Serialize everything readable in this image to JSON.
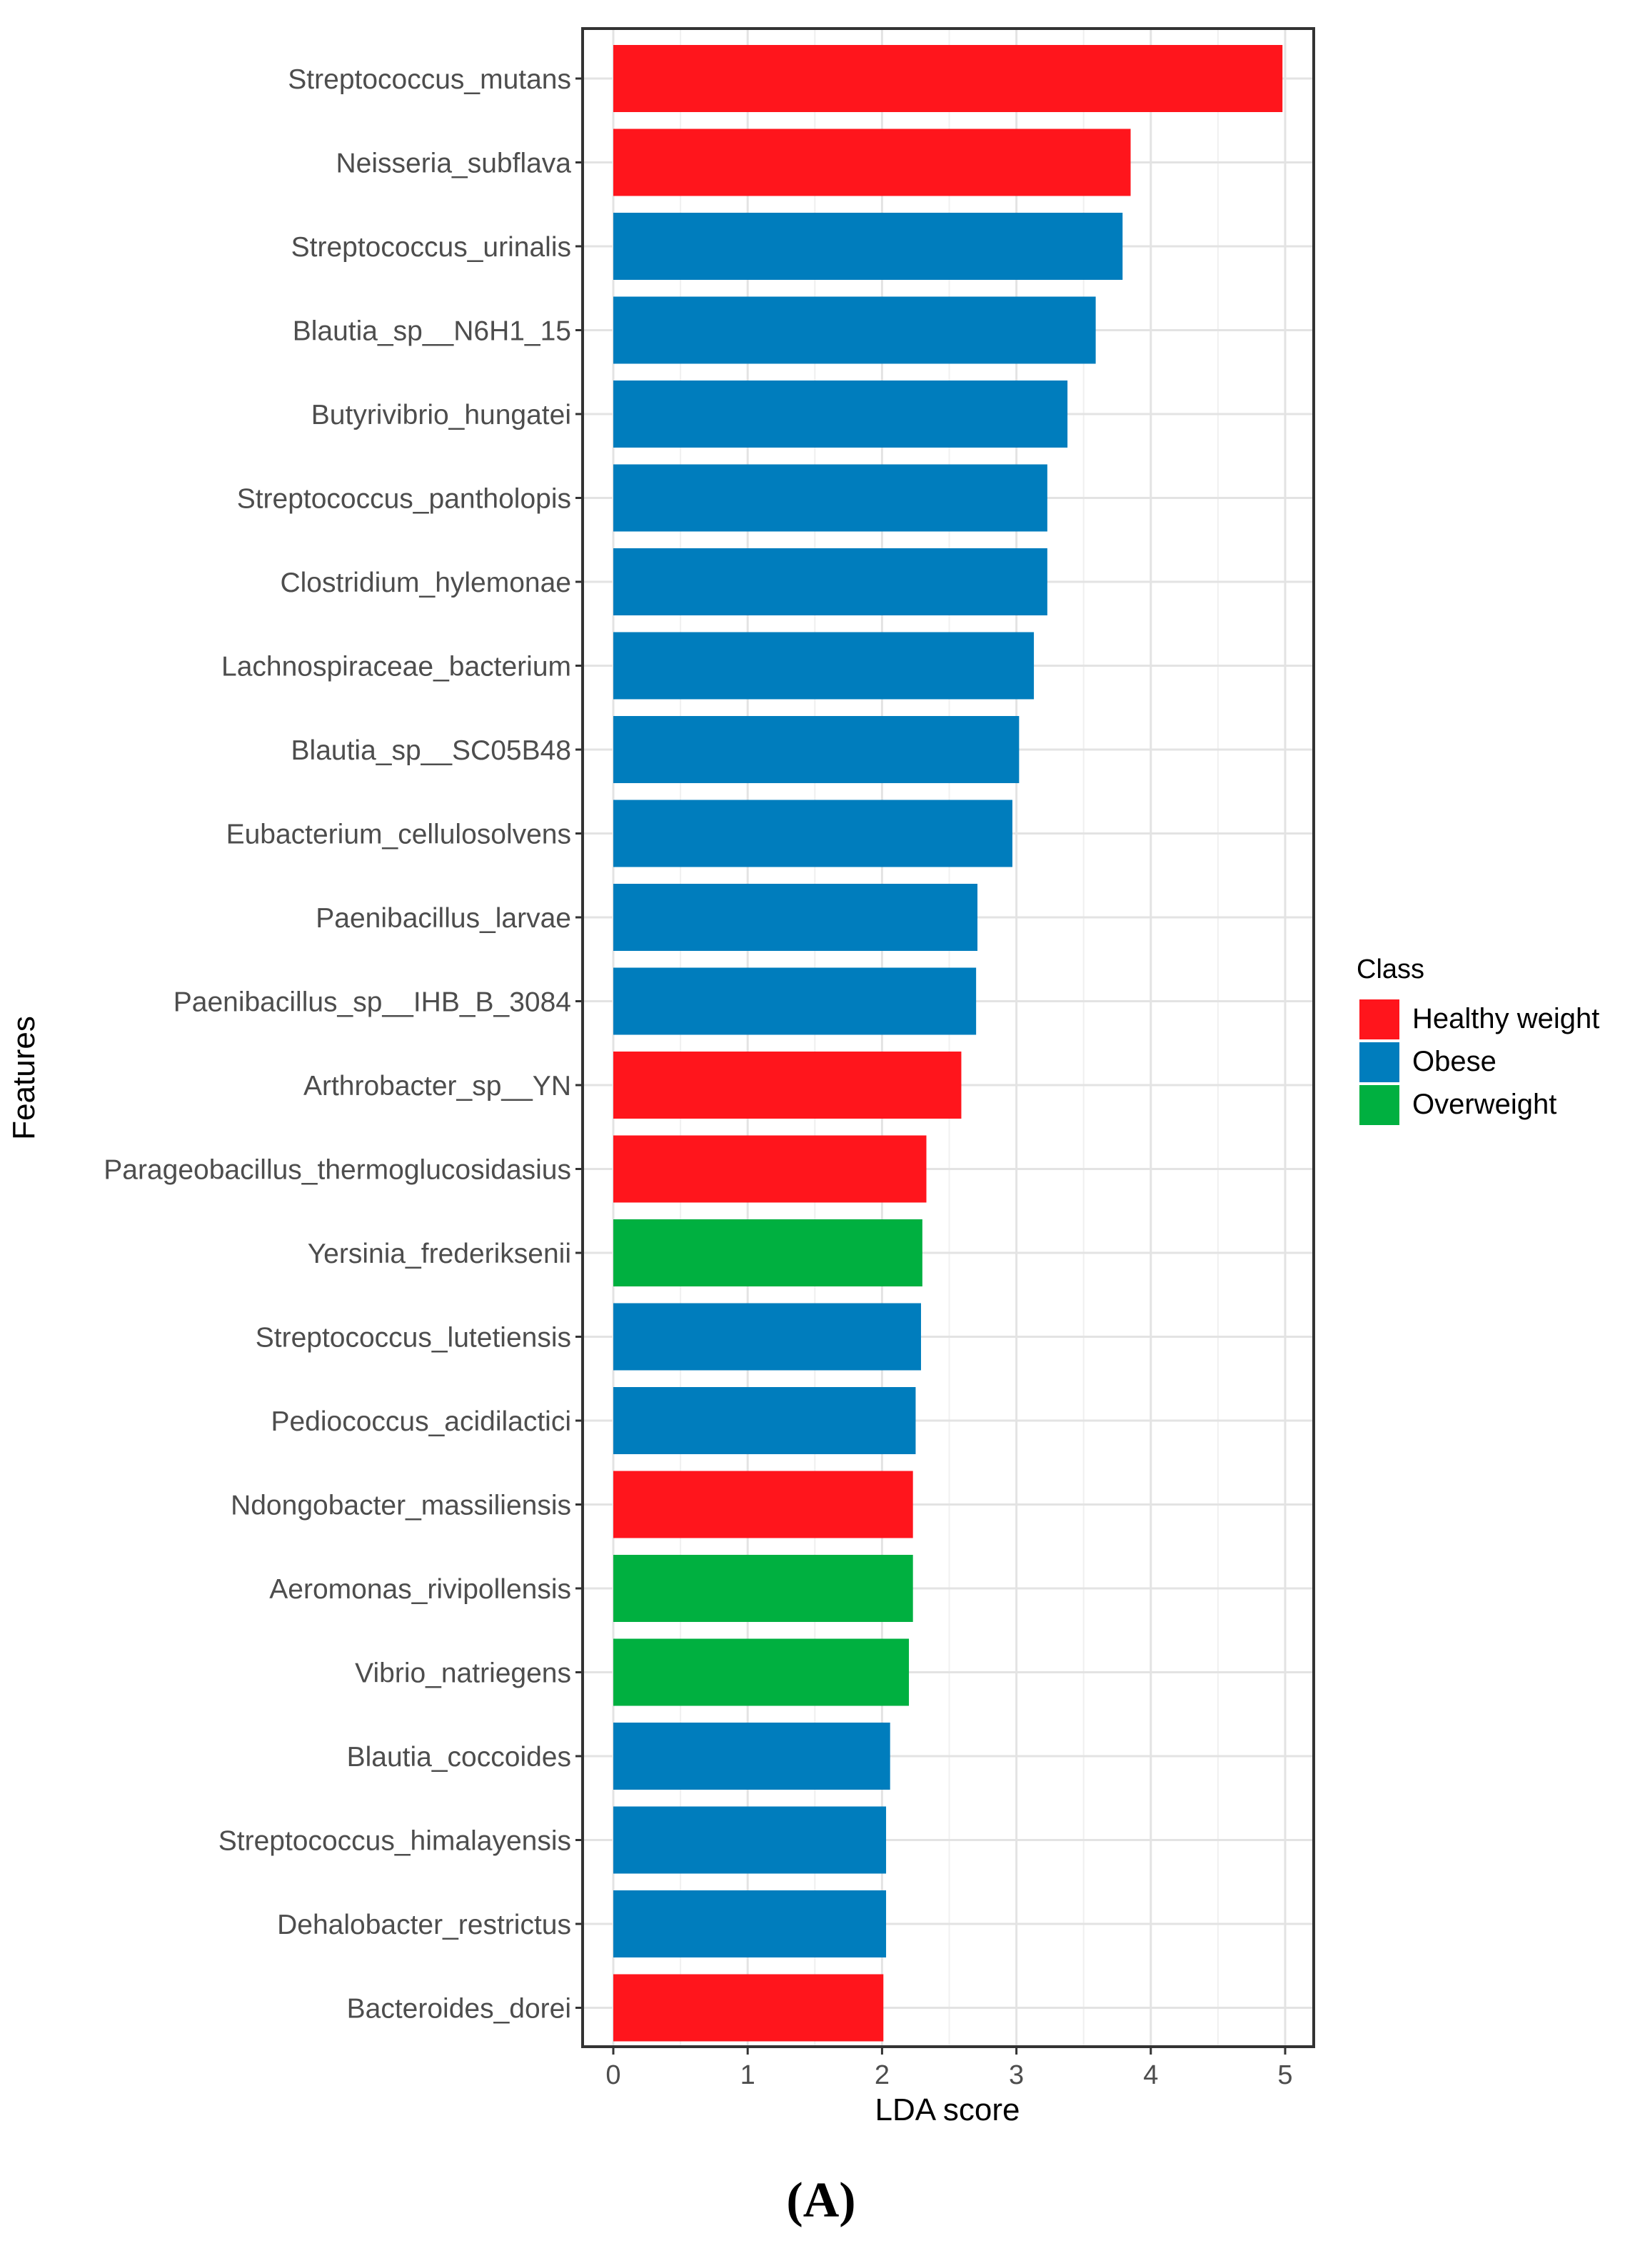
{
  "chart_data": {
    "type": "bar",
    "orientation": "horizontal",
    "title": "",
    "xlabel": "LDA score",
    "ylabel": "Features",
    "xlim": [
      0,
      5.2
    ],
    "xticks": [
      0,
      1,
      2,
      3,
      4,
      5
    ],
    "grid": true,
    "legend": {
      "title": "Class",
      "position": "right",
      "entries": [
        {
          "name": "Healthy weight",
          "color": "#FF151C"
        },
        {
          "name": "Obese",
          "color": "#007DBD"
        },
        {
          "name": "Overweight",
          "color": "#00B040"
        }
      ]
    },
    "panel_label": "(A)",
    "categories": [
      "Streptococcus_mutans",
      "Neisseria_subflava",
      "Streptococcus_urinalis",
      "Blautia_sp__N6H1_15",
      "Butyrivibrio_hungatei",
      "Streptococcus_pantholopis",
      "Clostridium_hylemonae",
      "Lachnospiraceae_bacterium",
      "Blautia_sp__SC05B48",
      "Eubacterium_cellulosolvens",
      "Paenibacillus_larvae",
      "Paenibacillus_sp__IHB_B_3084",
      "Arthrobacter_sp__YN",
      "Parageobacillus_thermoglucosidasius",
      "Yersinia_frederiksenii",
      "Streptococcus_lutetiensis",
      "Pediococcus_acidilactici",
      "Ndongobacter_massiliensis",
      "Aeromonas_rivipollensis",
      "Vibrio_natriegens",
      "Blautia_coccoides",
      "Streptococcus_himalayensis",
      "Dehalobacter_restrictus",
      "Bacteroides_dorei"
    ],
    "values": [
      4.98,
      3.85,
      3.79,
      3.59,
      3.38,
      3.23,
      3.23,
      3.13,
      3.02,
      2.97,
      2.71,
      2.7,
      2.59,
      2.33,
      2.3,
      2.29,
      2.25,
      2.23,
      2.23,
      2.2,
      2.06,
      2.03,
      2.03,
      2.01
    ],
    "classes": [
      "Healthy weight",
      "Healthy weight",
      "Obese",
      "Obese",
      "Obese",
      "Obese",
      "Obese",
      "Obese",
      "Obese",
      "Obese",
      "Obese",
      "Obese",
      "Healthy weight",
      "Healthy weight",
      "Overweight",
      "Obese",
      "Obese",
      "Healthy weight",
      "Overweight",
      "Overweight",
      "Obese",
      "Obese",
      "Obese",
      "Healthy weight"
    ]
  }
}
